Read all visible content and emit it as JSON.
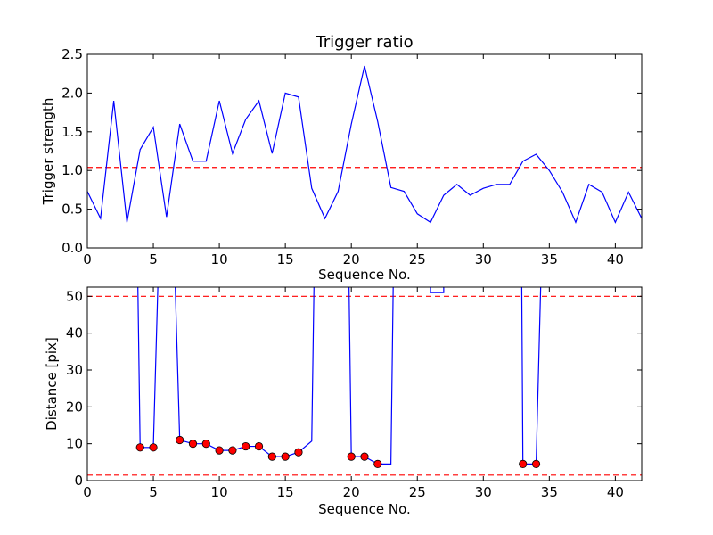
{
  "chart_data": [
    {
      "type": "line",
      "title": "Trigger ratio",
      "xlabel": "Sequence No.",
      "ylabel": "Trigger strength",
      "xlim": [
        0,
        42
      ],
      "ylim": [
        0,
        2.5
      ],
      "x_ticks": [
        0,
        5,
        10,
        15,
        20,
        25,
        30,
        35,
        40
      ],
      "x_tick_labels": [
        "0",
        "5",
        "10",
        "15",
        "20",
        "25",
        "30",
        "35",
        "40"
      ],
      "y_ticks": [
        0,
        0.5,
        1.0,
        1.5,
        2.0,
        2.5
      ],
      "y_tick_labels": [
        "0.0",
        "0.5",
        "1.0",
        "1.5",
        "2.0",
        "2.5"
      ],
      "series": [
        {
          "color": "#0000ff",
          "x": [
            0,
            1,
            2,
            3,
            4,
            5,
            6,
            7,
            8,
            9,
            10,
            11,
            12,
            13,
            14,
            15,
            16,
            17,
            18,
            19,
            20,
            21,
            22,
            23,
            24,
            25,
            26,
            27,
            28,
            29,
            30,
            31,
            32,
            33,
            34,
            35,
            36,
            37,
            38,
            39,
            40,
            41,
            42
          ],
          "y": [
            0.73,
            0.38,
            1.9,
            0.33,
            1.27,
            1.56,
            0.4,
            1.6,
            1.12,
            1.12,
            1.9,
            1.22,
            1.66,
            1.9,
            1.22,
            2.0,
            1.95,
            0.77,
            0.38,
            0.73,
            1.6,
            2.35,
            1.63,
            0.78,
            0.73,
            0.44,
            0.33,
            0.68,
            0.82,
            0.68,
            0.77,
            0.82,
            0.82,
            1.12,
            1.21,
            1.0,
            0.72,
            0.33,
            0.82,
            0.72,
            0.33,
            0.72,
            0.38
          ]
        }
      ],
      "hlines": [
        {
          "y": 1.04,
          "color": "#ff0000",
          "style": "dashed"
        }
      ],
      "grid": false,
      "legend": "none"
    },
    {
      "type": "line",
      "title": "",
      "xlabel": "Sequence No.",
      "ylabel": "Distance [pix]",
      "xlim": [
        0,
        42
      ],
      "ylim": [
        0,
        52.5
      ],
      "x_ticks": [
        0,
        5,
        10,
        15,
        20,
        25,
        30,
        35,
        40
      ],
      "x_tick_labels": [
        "0",
        "5",
        "10",
        "15",
        "20",
        "25",
        "30",
        "35",
        "40"
      ],
      "y_ticks": [
        0,
        10,
        20,
        30,
        40,
        50
      ],
      "y_tick_labels": [
        "0",
        "10",
        "20",
        "30",
        "40",
        "50"
      ],
      "line_segments": [
        {
          "color": "#0000ff",
          "x": [
            3.8,
            4,
            5,
            5.4
          ],
          "y": [
            60,
            9,
            9,
            60
          ]
        },
        {
          "color": "#0000ff",
          "x": [
            6.6,
            7,
            8,
            9,
            10,
            11,
            12,
            13,
            14,
            15,
            16,
            17,
            17.2
          ],
          "y": [
            60,
            11,
            10,
            10,
            8.2,
            8.2,
            9.3,
            9.3,
            6.5,
            6.5,
            7.7,
            10.7,
            60
          ]
        },
        {
          "color": "#0000ff",
          "x": [
            19.8,
            20,
            21,
            22,
            23,
            23.2
          ],
          "y": [
            60,
            6.5,
            6.5,
            4.5,
            4.5,
            60
          ]
        },
        {
          "color": "#0000ff",
          "x": [
            26,
            26,
            27,
            27
          ],
          "y": [
            60,
            51,
            51,
            60
          ]
        },
        {
          "color": "#0000ff",
          "x": [
            32.9,
            33,
            34,
            34.4
          ],
          "y": [
            60,
            4.5,
            4.5,
            60
          ]
        }
      ],
      "markers": {
        "color": "#ff0000",
        "x": [
          4,
          5,
          7,
          8,
          9,
          10,
          11,
          12,
          13,
          14,
          15,
          16,
          20,
          21,
          22,
          33,
          34
        ],
        "y": [
          9,
          9,
          11,
          10,
          10,
          8.2,
          8.2,
          9.3,
          9.3,
          6.5,
          6.5,
          7.7,
          6.5,
          6.5,
          4.5,
          4.5,
          4.5
        ]
      },
      "hlines": [
        {
          "y": 50,
          "color": "#ff0000",
          "style": "dashed"
        },
        {
          "y": 1.5,
          "color": "#ff0000",
          "style": "dashed"
        }
      ],
      "grid": false,
      "legend": "none"
    }
  ]
}
